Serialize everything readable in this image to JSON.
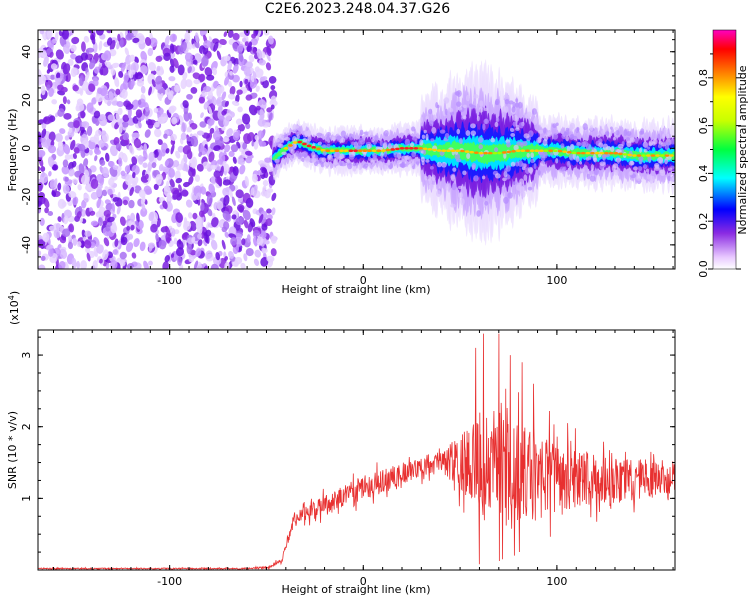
{
  "title": "C2E6.2023.248.04.37.G26",
  "colors": {
    "snr_line": "#e83030",
    "noise": "#8a2be2",
    "background": "#ffffff"
  },
  "chart_data": [
    {
      "type": "heatmap",
      "xlabel": "Height of straight line (km)",
      "ylabel": "Frequency (Hz)",
      "xlim": [
        -168,
        161
      ],
      "ylim": [
        -50,
        49
      ],
      "x_ticks": [
        -100,
        0,
        100
      ],
      "y_ticks": [
        -40,
        -20,
        0,
        20,
        40
      ],
      "colorbar": {
        "label": "Normalized spectral amplitude",
        "range": [
          0,
          1
        ],
        "ticks": [
          "0.0",
          "0.2",
          "0.4",
          "0.6",
          "0.8"
        ],
        "colormap": "rainbow"
      },
      "noise_region_x": [
        -168,
        -46
      ],
      "ridge": [
        {
          "x": -46,
          "y": -4
        },
        {
          "x": -40,
          "y": 0
        },
        {
          "x": -34,
          "y": 3
        },
        {
          "x": -28,
          "y": 1
        },
        {
          "x": -20,
          "y": -1
        },
        {
          "x": -10,
          "y": -1
        },
        {
          "x": 0,
          "y": -1
        },
        {
          "x": 10,
          "y": -1
        },
        {
          "x": 20,
          "y": 0
        },
        {
          "x": 30,
          "y": 0
        },
        {
          "x": 40,
          "y": -1
        },
        {
          "x": 50,
          "y": -1
        },
        {
          "x": 60,
          "y": -2
        },
        {
          "x": 70,
          "y": -2
        },
        {
          "x": 80,
          "y": -1
        },
        {
          "x": 90,
          "y": -1
        },
        {
          "x": 100,
          "y": -1
        },
        {
          "x": 110,
          "y": -2
        },
        {
          "x": 120,
          "y": -2
        },
        {
          "x": 130,
          "y": -2
        },
        {
          "x": 140,
          "y": -3
        },
        {
          "x": 150,
          "y": -3
        },
        {
          "x": 161,
          "y": -3
        }
      ]
    },
    {
      "type": "line",
      "xlabel": "Height of straight line (km)",
      "ylabel": "SNR (10 * v/v)",
      "y_multiplier": "(x10",
      "y_multiplier_exp": "4",
      "y_multiplier_close": ")",
      "xlim": [
        -168,
        161
      ],
      "ylim": [
        0,
        3.35
      ],
      "x_ticks": [
        -100,
        0,
        100
      ],
      "y_ticks": [
        1,
        2,
        3
      ],
      "envelope": [
        {
          "x": -168,
          "mean": 0.02,
          "amp": 0.01
        },
        {
          "x": -60,
          "mean": 0.02,
          "amp": 0.01
        },
        {
          "x": -48,
          "mean": 0.04,
          "amp": 0.02
        },
        {
          "x": -42,
          "mean": 0.15,
          "amp": 0.05
        },
        {
          "x": -36,
          "mean": 0.7,
          "amp": 0.12
        },
        {
          "x": -20,
          "mean": 0.9,
          "amp": 0.18
        },
        {
          "x": 0,
          "mean": 1.15,
          "amp": 0.22
        },
        {
          "x": 20,
          "mean": 1.35,
          "amp": 0.18
        },
        {
          "x": 40,
          "mean": 1.5,
          "amp": 0.15
        },
        {
          "x": 50,
          "mean": 1.5,
          "amp": 0.5
        },
        {
          "x": 60,
          "mean": 1.4,
          "amp": 0.9
        },
        {
          "x": 70,
          "mean": 1.5,
          "amp": 1.1
        },
        {
          "x": 85,
          "mean": 1.3,
          "amp": 0.85
        },
        {
          "x": 100,
          "mean": 1.3,
          "amp": 0.6
        },
        {
          "x": 120,
          "mean": 1.25,
          "amp": 0.45
        },
        {
          "x": 140,
          "mean": 1.25,
          "amp": 0.35
        },
        {
          "x": 161,
          "mean": 1.3,
          "amp": 0.3
        }
      ],
      "peaks": [
        {
          "x": 58,
          "y": 3.1
        },
        {
          "x": 62,
          "y": 3.3
        },
        {
          "x": 70,
          "y": 3.3
        },
        {
          "x": 76,
          "y": 3.0
        },
        {
          "x": 82,
          "y": 2.9
        },
        {
          "x": 88,
          "y": 2.6
        },
        {
          "x": 60,
          "y": 0.08
        },
        {
          "x": 72,
          "y": 0.15
        },
        {
          "x": 78,
          "y": 0.2
        }
      ]
    }
  ]
}
